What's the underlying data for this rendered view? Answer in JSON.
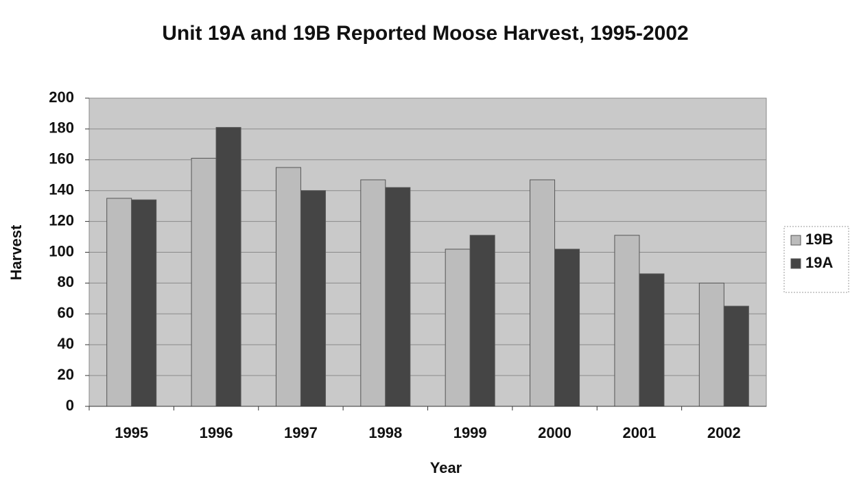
{
  "chart_data": {
    "type": "bar",
    "title": "Unit 19A and 19B Reported Moose Harvest, 1995-2002",
    "x_label": "Year",
    "y_label": "Harvest",
    "categories": [
      "1995",
      "1996",
      "1997",
      "1998",
      "1999",
      "2000",
      "2001",
      "2002"
    ],
    "series": [
      {
        "name": "19B",
        "color": "#bcbcbc",
        "values": [
          135,
          161,
          155,
          147,
          102,
          147,
          111,
          80
        ]
      },
      {
        "name": "19A",
        "color": "#454545",
        "values": [
          134,
          181,
          140,
          142,
          111,
          102,
          86,
          65
        ]
      }
    ],
    "ylim": [
      0,
      200
    ],
    "yticks": [
      0,
      20,
      40,
      60,
      80,
      100,
      120,
      140,
      160,
      180,
      200
    ],
    "grid": true,
    "legend": "right"
  }
}
